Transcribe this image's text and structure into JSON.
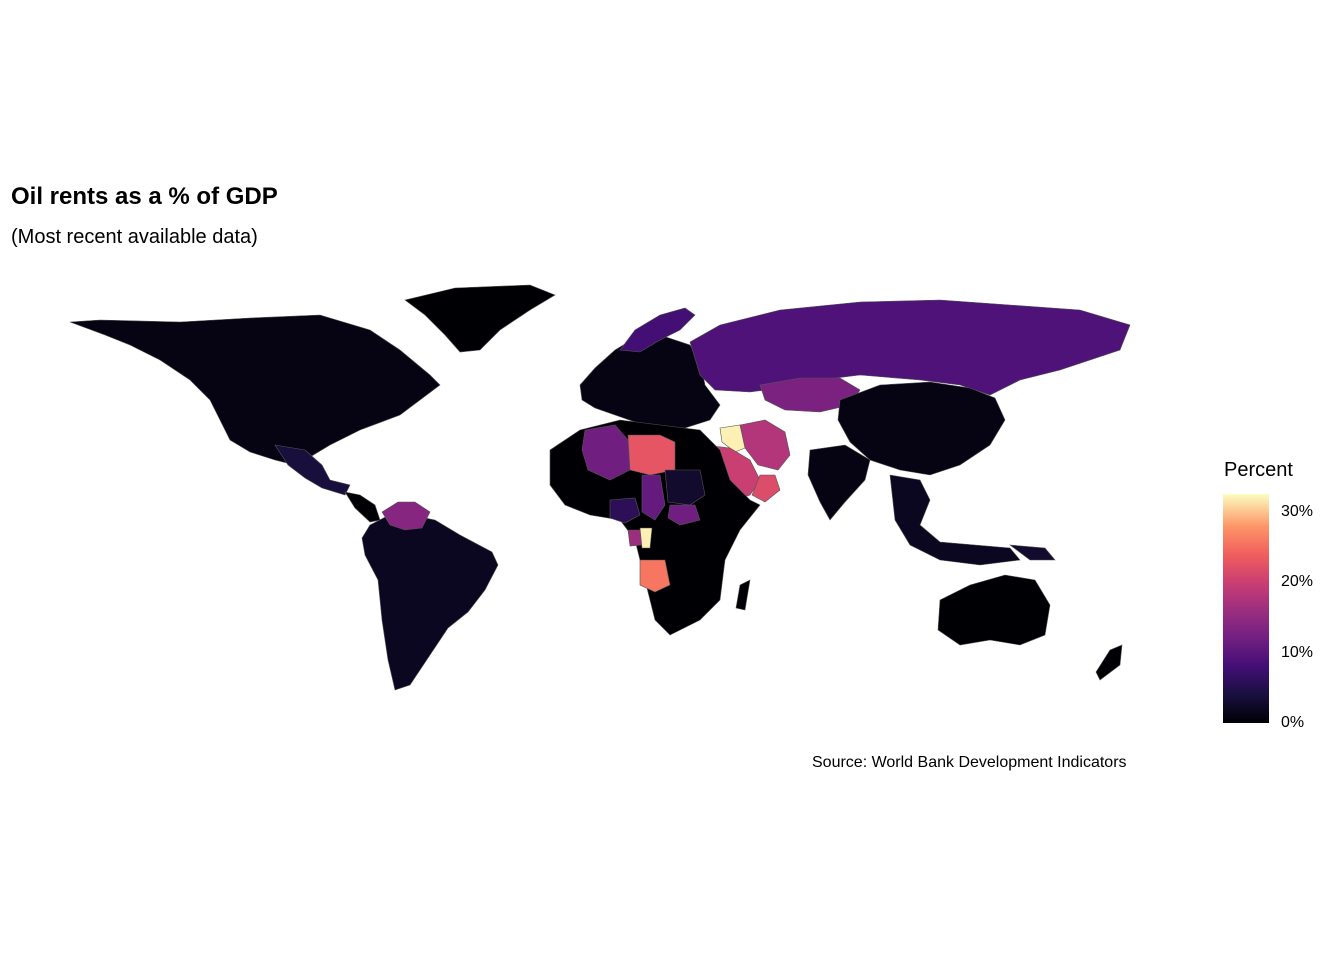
{
  "title": "Oil rents as a % of GDP",
  "subtitle": "(Most recent available data)",
  "caption": "Source: World Bank Development Indicators",
  "legend": {
    "title": "Percent",
    "ticks": [
      {
        "label": "0%",
        "value": 0
      },
      {
        "label": "10%",
        "value": 10
      },
      {
        "label": "20%",
        "value": 20
      },
      {
        "label": "30%",
        "value": 30
      }
    ],
    "max": 32.5,
    "palette": [
      "#000004",
      "#180f3d",
      "#440f76",
      "#721f81",
      "#9e2f7f",
      "#cd4071",
      "#f1605d",
      "#fd9668",
      "#fcfdbf"
    ]
  },
  "regions": [
    {
      "name": "North America",
      "value": 1
    },
    {
      "name": "Greenland",
      "value": 0
    },
    {
      "name": "Mexico",
      "value": 4
    },
    {
      "name": "Venezuela",
      "value": 14
    },
    {
      "name": "South America",
      "value": 2
    },
    {
      "name": "Europe",
      "value": 1
    },
    {
      "name": "Norway",
      "value": 8
    },
    {
      "name": "Russia",
      "value": 9
    },
    {
      "name": "Kazakhstan",
      "value": 13
    },
    {
      "name": "China",
      "value": 1
    },
    {
      "name": "Iran",
      "value": 18
    },
    {
      "name": "Iraq",
      "value": 32
    },
    {
      "name": "Saudi Arabia",
      "value": 20
    },
    {
      "name": "Oman",
      "value": 22
    },
    {
      "name": "Libya",
      "value": 23
    },
    {
      "name": "Algeria",
      "value": 12
    },
    {
      "name": "Chad",
      "value": 11
    },
    {
      "name": "Sudan",
      "value": 3
    },
    {
      "name": "South Sudan",
      "value": 12
    },
    {
      "name": "Nigeria",
      "value": 6
    },
    {
      "name": "Congo",
      "value": 32
    },
    {
      "name": "Gabon",
      "value": 16
    },
    {
      "name": "Angola",
      "value": 26
    },
    {
      "name": "Africa",
      "value": 0
    },
    {
      "name": "India",
      "value": 1
    },
    {
      "name": "Southeast Asia",
      "value": 2
    },
    {
      "name": "Australia",
      "value": 0
    },
    {
      "name": "New Zealand",
      "value": 0
    },
    {
      "name": "Papua New Guinea",
      "value": 3
    }
  ]
}
